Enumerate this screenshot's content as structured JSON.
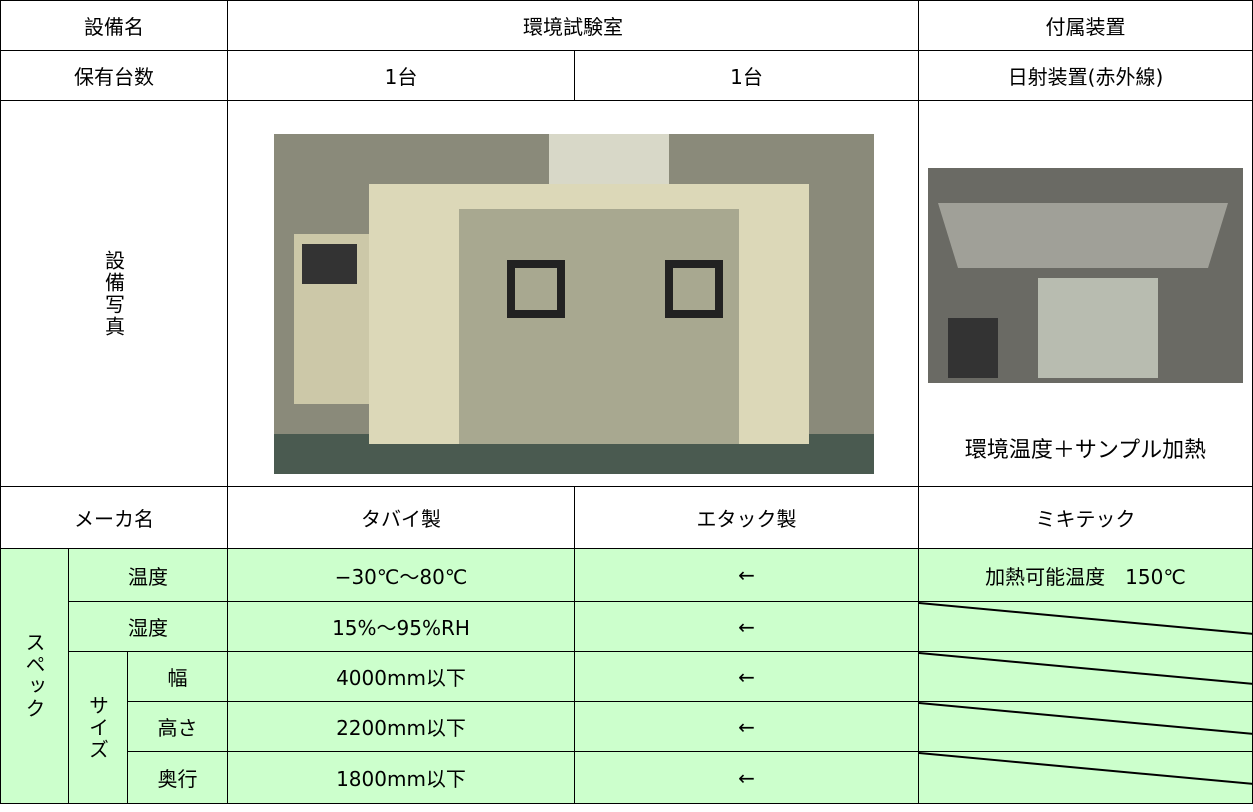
{
  "table": {
    "header": {
      "label": "設備名",
      "main": "環境試験室",
      "accessory": "付属装置"
    },
    "count": {
      "label": "保有台数",
      "values": [
        "1台",
        "1台",
        "日射装置(赤外線)"
      ]
    },
    "photo": {
      "label": "設備写真",
      "caption": "環境温度＋サンプル加熱"
    },
    "maker": {
      "label": "メーカ名",
      "values": [
        "タバイ製",
        "エタック製",
        "ミキテック"
      ]
    },
    "spec": {
      "label": "スペック",
      "size_label": "サイズ",
      "rows": [
        {
          "label": "温度",
          "values": [
            "−30℃〜80℃",
            "←",
            "加熱可能温度　150℃"
          ]
        },
        {
          "label": "湿度",
          "values": [
            "15%〜95%RH",
            "←"
          ]
        },
        {
          "label": "幅",
          "values": [
            "4000mm以下",
            "←"
          ]
        },
        {
          "label": "高さ",
          "values": [
            "2200mm以下",
            "←"
          ]
        },
        {
          "label": "奥行",
          "values": [
            "1800mm以下",
            "←"
          ]
        }
      ]
    }
  }
}
